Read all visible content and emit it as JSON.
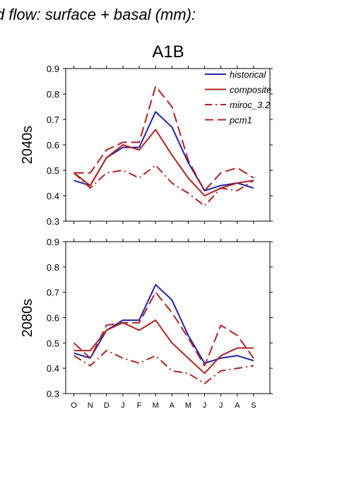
{
  "page_title": "d flow: surface + basal (mm):",
  "scenario_title": "A1B",
  "chart_data": [
    {
      "type": "line",
      "panel_label": "2040s",
      "categories": [
        "O",
        "N",
        "D",
        "J",
        "F",
        "M",
        "A",
        "M",
        "J",
        "J",
        "A",
        "S"
      ],
      "ylim": [
        0.3,
        0.9
      ],
      "yticks": [
        "0.3",
        "0.4",
        "0.5",
        "0.6",
        "0.7",
        "0.8",
        "0.9"
      ],
      "legend_position": "top-right",
      "series": [
        {
          "name": "historical",
          "color": "#2222aa",
          "dash": "solid",
          "values": [
            0.46,
            0.44,
            0.55,
            0.59,
            0.59,
            0.73,
            0.67,
            0.53,
            0.42,
            0.44,
            0.45,
            0.43
          ]
        },
        {
          "name": "composite",
          "color": "#b22222",
          "dash": "solid",
          "values": [
            0.49,
            0.44,
            0.55,
            0.6,
            0.58,
            0.66,
            0.56,
            0.47,
            0.4,
            0.43,
            0.45,
            0.46
          ]
        },
        {
          "name": "miroc_3.2",
          "color": "#b22222",
          "dash": "dashdot",
          "values": [
            0.49,
            0.43,
            0.49,
            0.5,
            0.47,
            0.52,
            0.45,
            0.41,
            0.36,
            0.43,
            0.42,
            0.46
          ]
        },
        {
          "name": "pcm1",
          "color": "#b22222",
          "dash": "dash",
          "values": [
            0.49,
            0.49,
            0.58,
            0.61,
            0.61,
            0.83,
            0.75,
            0.54,
            0.42,
            0.49,
            0.51,
            0.47
          ]
        }
      ]
    },
    {
      "type": "line",
      "panel_label": "2080s",
      "categories": [
        "O",
        "N",
        "D",
        "J",
        "F",
        "M",
        "A",
        "M",
        "J",
        "J",
        "A",
        "S"
      ],
      "ylim": [
        0.3,
        0.9
      ],
      "yticks": [
        "0.3",
        "0.4",
        "0.5",
        "0.6",
        "0.7",
        "0.8",
        "0.9"
      ],
      "series": [
        {
          "name": "historical",
          "color": "#2222aa",
          "dash": "solid",
          "values": [
            0.46,
            0.44,
            0.55,
            0.59,
            0.59,
            0.73,
            0.67,
            0.53,
            0.42,
            0.44,
            0.45,
            0.43
          ]
        },
        {
          "name": "composite",
          "color": "#b22222",
          "dash": "solid",
          "values": [
            0.47,
            0.47,
            0.55,
            0.58,
            0.55,
            0.59,
            0.5,
            0.44,
            0.38,
            0.45,
            0.48,
            0.48
          ]
        },
        {
          "name": "miroc_3.2",
          "color": "#b22222",
          "dash": "dashdot",
          "values": [
            0.45,
            0.41,
            0.47,
            0.44,
            0.42,
            0.45,
            0.39,
            0.38,
            0.34,
            0.39,
            0.4,
            0.41
          ]
        },
        {
          "name": "pcm1",
          "color": "#b22222",
          "dash": "dash",
          "values": [
            0.5,
            0.44,
            0.57,
            0.58,
            0.58,
            0.7,
            0.62,
            0.52,
            0.41,
            0.57,
            0.53,
            0.44
          ]
        }
      ]
    }
  ]
}
